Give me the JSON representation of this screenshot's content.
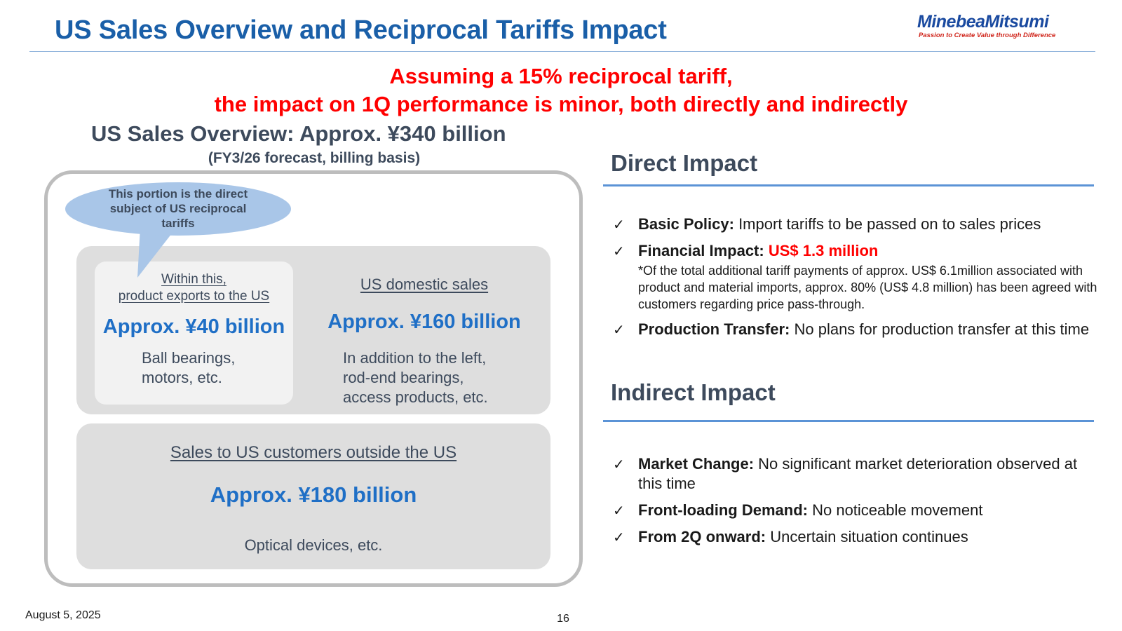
{
  "header": {
    "title": "US Sales Overview and Reciprocal Tariffs Impact",
    "logo_name": "MinebeaMitsumi",
    "logo_tagline": "Passion to Create Value through Difference"
  },
  "headline": {
    "line1": "Assuming a 15% reciprocal tariff,",
    "line2": "the impact on 1Q performance is minor, both directly and indirectly"
  },
  "overview": {
    "title": "US Sales Overview: Approx. ¥340 billion",
    "subtitle": "(FY3/26 forecast, billing basis)",
    "bubble": "This portion is the direct subject of US reciprocal tariffs",
    "exports": {
      "label_line1": "Within this,",
      "label_line2": "product exports to the US",
      "value": "Approx. ¥40 billion",
      "desc_line1": "Ball bearings,",
      "desc_line2": "motors, etc."
    },
    "domestic": {
      "label": "US domestic sales",
      "value": "Approx. ¥160 billion",
      "desc_line1": "In addition to the left,",
      "desc_line2": "rod-end bearings,",
      "desc_line3": "access products, etc."
    },
    "outside": {
      "label": "Sales to US customers outside the US",
      "value": "Approx. ¥180 billion",
      "desc": "Optical devices, etc."
    }
  },
  "direct_impact": {
    "heading": "Direct Impact",
    "check_glyph": "✓",
    "items": [
      {
        "label": "Basic Policy:",
        "text": " Import tariffs to be passed on to sales prices"
      },
      {
        "label": "Financial Impact:",
        "highlight": "US$ 1.3 million",
        "note": "*Of the total additional tariff payments of approx. US$ 6.1million associated with product and material imports, approx. 80% (US$ 4.8 million) has been agreed with customers regarding price pass-through."
      },
      {
        "label": "Production Transfer:",
        "text": " No plans for production transfer at this time"
      }
    ]
  },
  "indirect_impact": {
    "heading": "Indirect Impact",
    "items": [
      {
        "label": "Market Change:",
        "text": " No significant market deterioration observed at this time"
      },
      {
        "label": "Front-loading Demand:",
        "text": " No noticeable movement"
      },
      {
        "label": "From 2Q onward:",
        "text": " Uncertain situation continues"
      }
    ]
  },
  "footer": {
    "date": "August 5, 2025",
    "page": "16"
  },
  "colors": {
    "title_blue": "#1a5fa8",
    "headline_red": "#ff0000",
    "value_blue": "#1f6fc6",
    "bubble_blue": "#a9c6e8",
    "box_gray": "#dedede",
    "section_rule": "#5b93d6"
  }
}
